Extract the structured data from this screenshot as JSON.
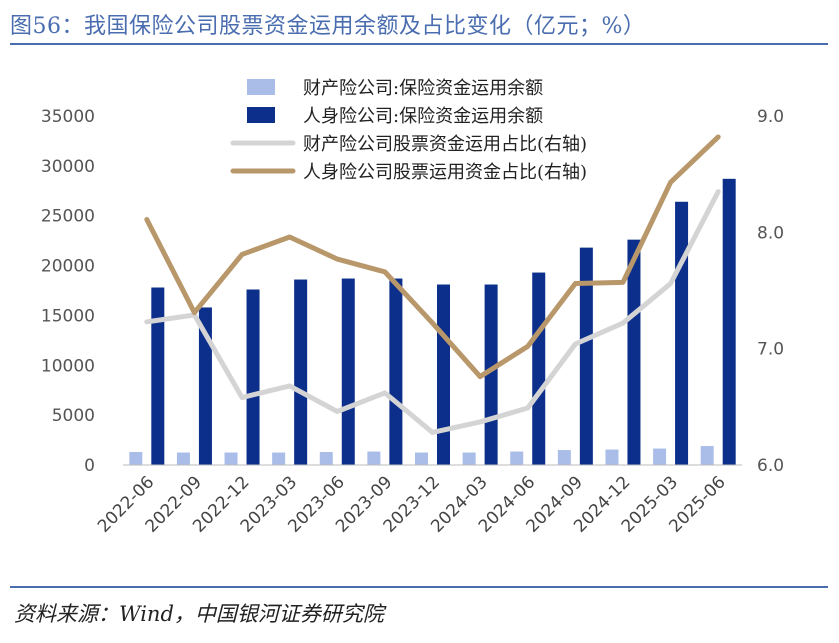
{
  "title": "图56：我国保险公司股票资金运用余额及占比变化（亿元；%）",
  "source": "资料来源：Wind，中国银河证券研究院",
  "chart_data": {
    "type": "bar+line",
    "categories": [
      "2022-06",
      "2022-09",
      "2022-12",
      "2023-03",
      "2023-06",
      "2023-09",
      "2023-12",
      "2024-03",
      "2024-06",
      "2024-09",
      "2024-12",
      "2025-03",
      "2025-06"
    ],
    "series": [
      {
        "name": "财产险公司:保险资金运用余额",
        "kind": "bar",
        "axis": "left",
        "color": "#a9bde8",
        "values": [
          1300,
          1250,
          1250,
          1250,
          1300,
          1350,
          1250,
          1250,
          1350,
          1500,
          1550,
          1650,
          1900
        ]
      },
      {
        "name": "人身险公司:保险资金运用余额",
        "kind": "bar",
        "axis": "left",
        "color": "#0b2f8a",
        "values": [
          17800,
          15800,
          17600,
          18600,
          18700,
          18700,
          18100,
          18100,
          19300,
          21800,
          22600,
          26400,
          28700
        ]
      },
      {
        "name": "财产险公司股票资金运用占比(右轴)",
        "kind": "line",
        "axis": "right",
        "color": "#d4d4d4",
        "values": [
          7.23,
          7.29,
          6.58,
          6.68,
          6.46,
          6.62,
          6.28,
          6.37,
          6.49,
          7.04,
          7.22,
          7.56,
          8.35
        ]
      },
      {
        "name": "人身险公司股票运用资金占比(右轴)",
        "kind": "line",
        "axis": "right",
        "color": "#b8976a",
        "values": [
          8.11,
          7.31,
          7.81,
          7.96,
          7.77,
          7.66,
          7.22,
          6.76,
          7.02,
          7.56,
          7.57,
          8.43,
          8.82
        ]
      }
    ],
    "left_axis": {
      "min": 0,
      "max": 35000,
      "ticks": [
        "0",
        "5000",
        "10000",
        "15000",
        "20000",
        "25000",
        "30000",
        "35000"
      ]
    },
    "right_axis": {
      "min": 6.0,
      "max": 9.0,
      "ticks": [
        "6.0",
        "7.0",
        "8.0",
        "9.0"
      ]
    },
    "legend_position": "top-center"
  }
}
